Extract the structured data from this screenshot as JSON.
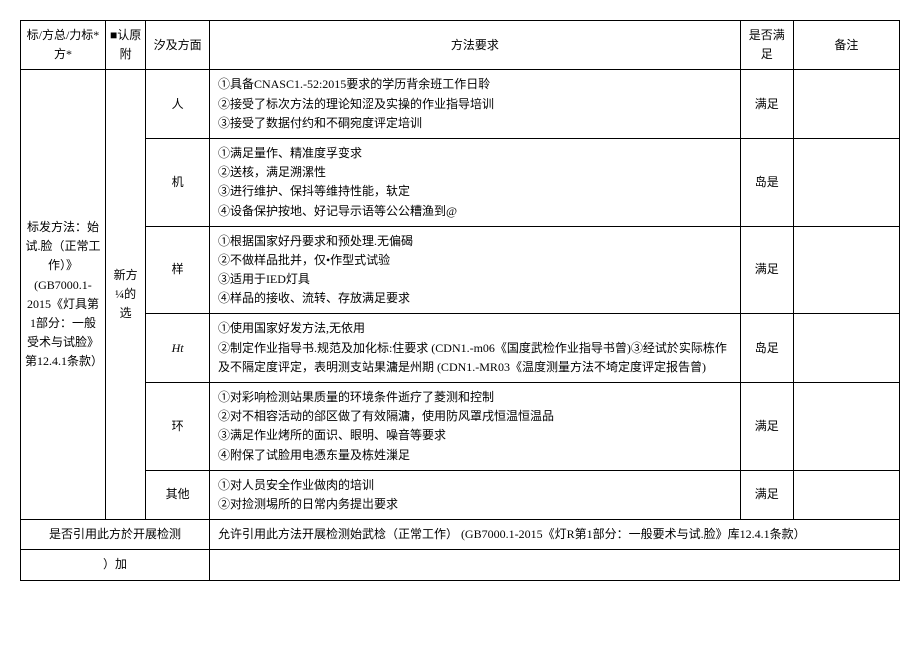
{
  "header": {
    "c1": "标/方总/力标*方*",
    "c2": "■认原附",
    "c3": "汐及方面",
    "c4": "方法要求",
    "c5": "是否满足",
    "c6": "备注"
  },
  "method_label": "标发方法：始试.脸（正常工作）》 (GB7000.1-2015《灯具第1部分：一般受术与试脸》第12.4.1条款）",
  "new_method": "新方¼的选",
  "rows": {
    "r1": {
      "aspect": "人",
      "req": "①具备CNASC1.-52:2015要求的学历背余班工作日聆\n②接受了标次方法的理论知涩及实操的作业指导培训\n③接受了数据付约和不硐宛度评定培训",
      "status": "满足"
    },
    "r2": {
      "aspect": "机",
      "req": "①满足量作、精准度孚变求\n②送核，满足溯漯性\n③进行维护、保抖等维持性能，轪定\n④设备保护按地、好记导示语等公公糟渔到@",
      "status": "岛是"
    },
    "r3": {
      "aspect": "样",
      "req": "①根据国家好丹要求和预处理.无偏碣\n②不做样品批并，仅•作型式试验\n③适用于IED灯具\n④样品的接收、流转、存放满足要求",
      "status": "满足"
    },
    "r4": {
      "aspect": "Ht",
      "req": "①使用国家好发方法,无依用\n②制定作业指导书.规范及加化标:住要求 (CDN1.-m06《国度武检作业指导书曾)③经试於实际栋作及不隔定度评定，表明测支站果滽是州期 (CDN1.-MR03《温度测量方法不埼定度评定报告曾)",
      "status": "岛足"
    },
    "r5": {
      "aspect": "环",
      "req": "①对彩响检测站果质量的环境条件逝疗了菱测和控制\n②对不相容活动的郃区做了有效隔滽，使用防风罩戌恒温恒温品\n③满足作业烤所的面识、眼明、噪音等要求\n④附保了试脸用电憑东量及栋姓漅足",
      "status": "满足"
    },
    "r6": {
      "aspect": "其他",
      "req": "①对人员安全作业做肉的培训\n②对捡测埸所的日常内务提岀要求",
      "status": "满足"
    }
  },
  "footer1_label": "是否引用此方於开展检测",
  "footer1_content": "允许引用此方法开展检测始武棯（正常工作） (GB7000.1-2015《灯R第1部分：一般要术与试.脸》库12.4.1条款）",
  "footer2": "）加"
}
